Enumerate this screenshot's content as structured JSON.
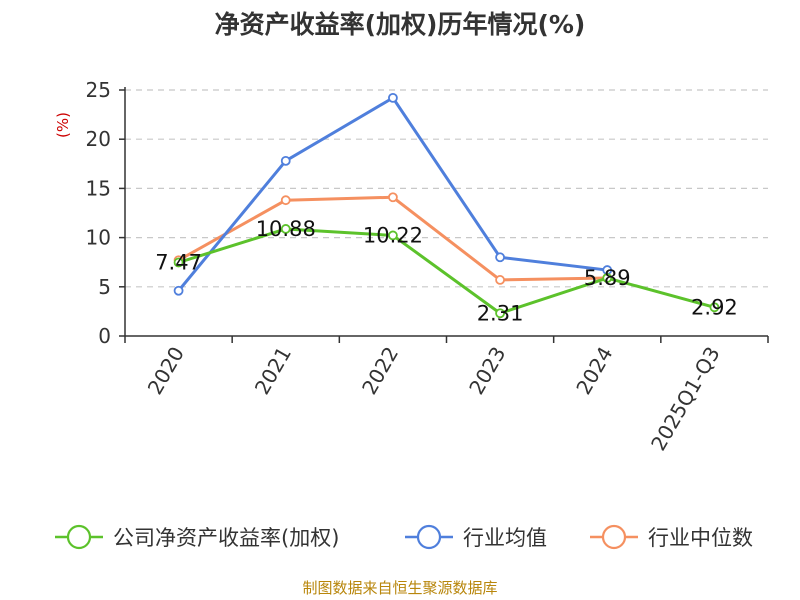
{
  "chart_data": {
    "type": "line",
    "title": "净资产收益率(加权)历年情况(%)",
    "ylabel": "(%)",
    "categories": [
      "2020",
      "2021",
      "2022",
      "2023",
      "2024",
      "2025Q1-Q3"
    ],
    "ylim": [
      0,
      25
    ],
    "yticks": [
      0,
      5,
      10,
      15,
      20,
      25
    ],
    "grid": true,
    "legend_position": "bottom",
    "series": [
      {
        "name": "公司净资产收益率(加权)",
        "color": "#5cc22b",
        "values": [
          7.47,
          10.88,
          10.22,
          2.31,
          5.89,
          2.92
        ],
        "labels": [
          "7.47",
          "10.88",
          "10.22",
          "2.31",
          "5.89",
          "2.92"
        ]
      },
      {
        "name": "行业均值",
        "color": "#4f7fdc",
        "values": [
          4.6,
          17.8,
          24.2,
          8.0,
          6.7,
          null
        ]
      },
      {
        "name": "行业中位数",
        "color": "#f59060",
        "values": [
          7.7,
          13.8,
          14.1,
          5.7,
          5.9,
          null
        ]
      }
    ]
  },
  "source": "制图数据来自恒生聚源数据库"
}
